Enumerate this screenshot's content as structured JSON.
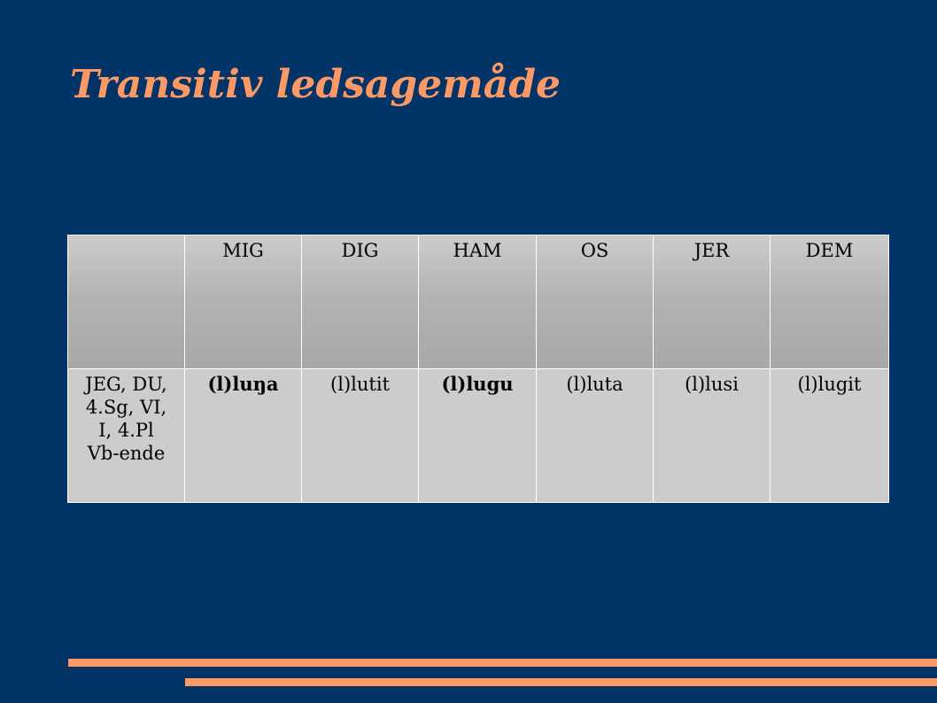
{
  "slide": {
    "title": "Transitiv ledsagemåde"
  },
  "table": {
    "header": [
      "",
      "MIG",
      "DIG",
      "HAM",
      "OS",
      "JER",
      "DEM"
    ],
    "row_label": [
      "JEG, DU,",
      "4.Sg, VI,",
      "I, 4.Pl",
      "Vb-ende"
    ],
    "cells": [
      "(l)luŋa",
      "(l)lutit",
      "(l)lugu",
      "(l)luta",
      "(l)lusi",
      "(l)lugit"
    ]
  },
  "colors": {
    "background": "#003366",
    "accent": "#ff9966",
    "header_cell": "#b3b3b3",
    "body_cell": "#cccccc"
  }
}
